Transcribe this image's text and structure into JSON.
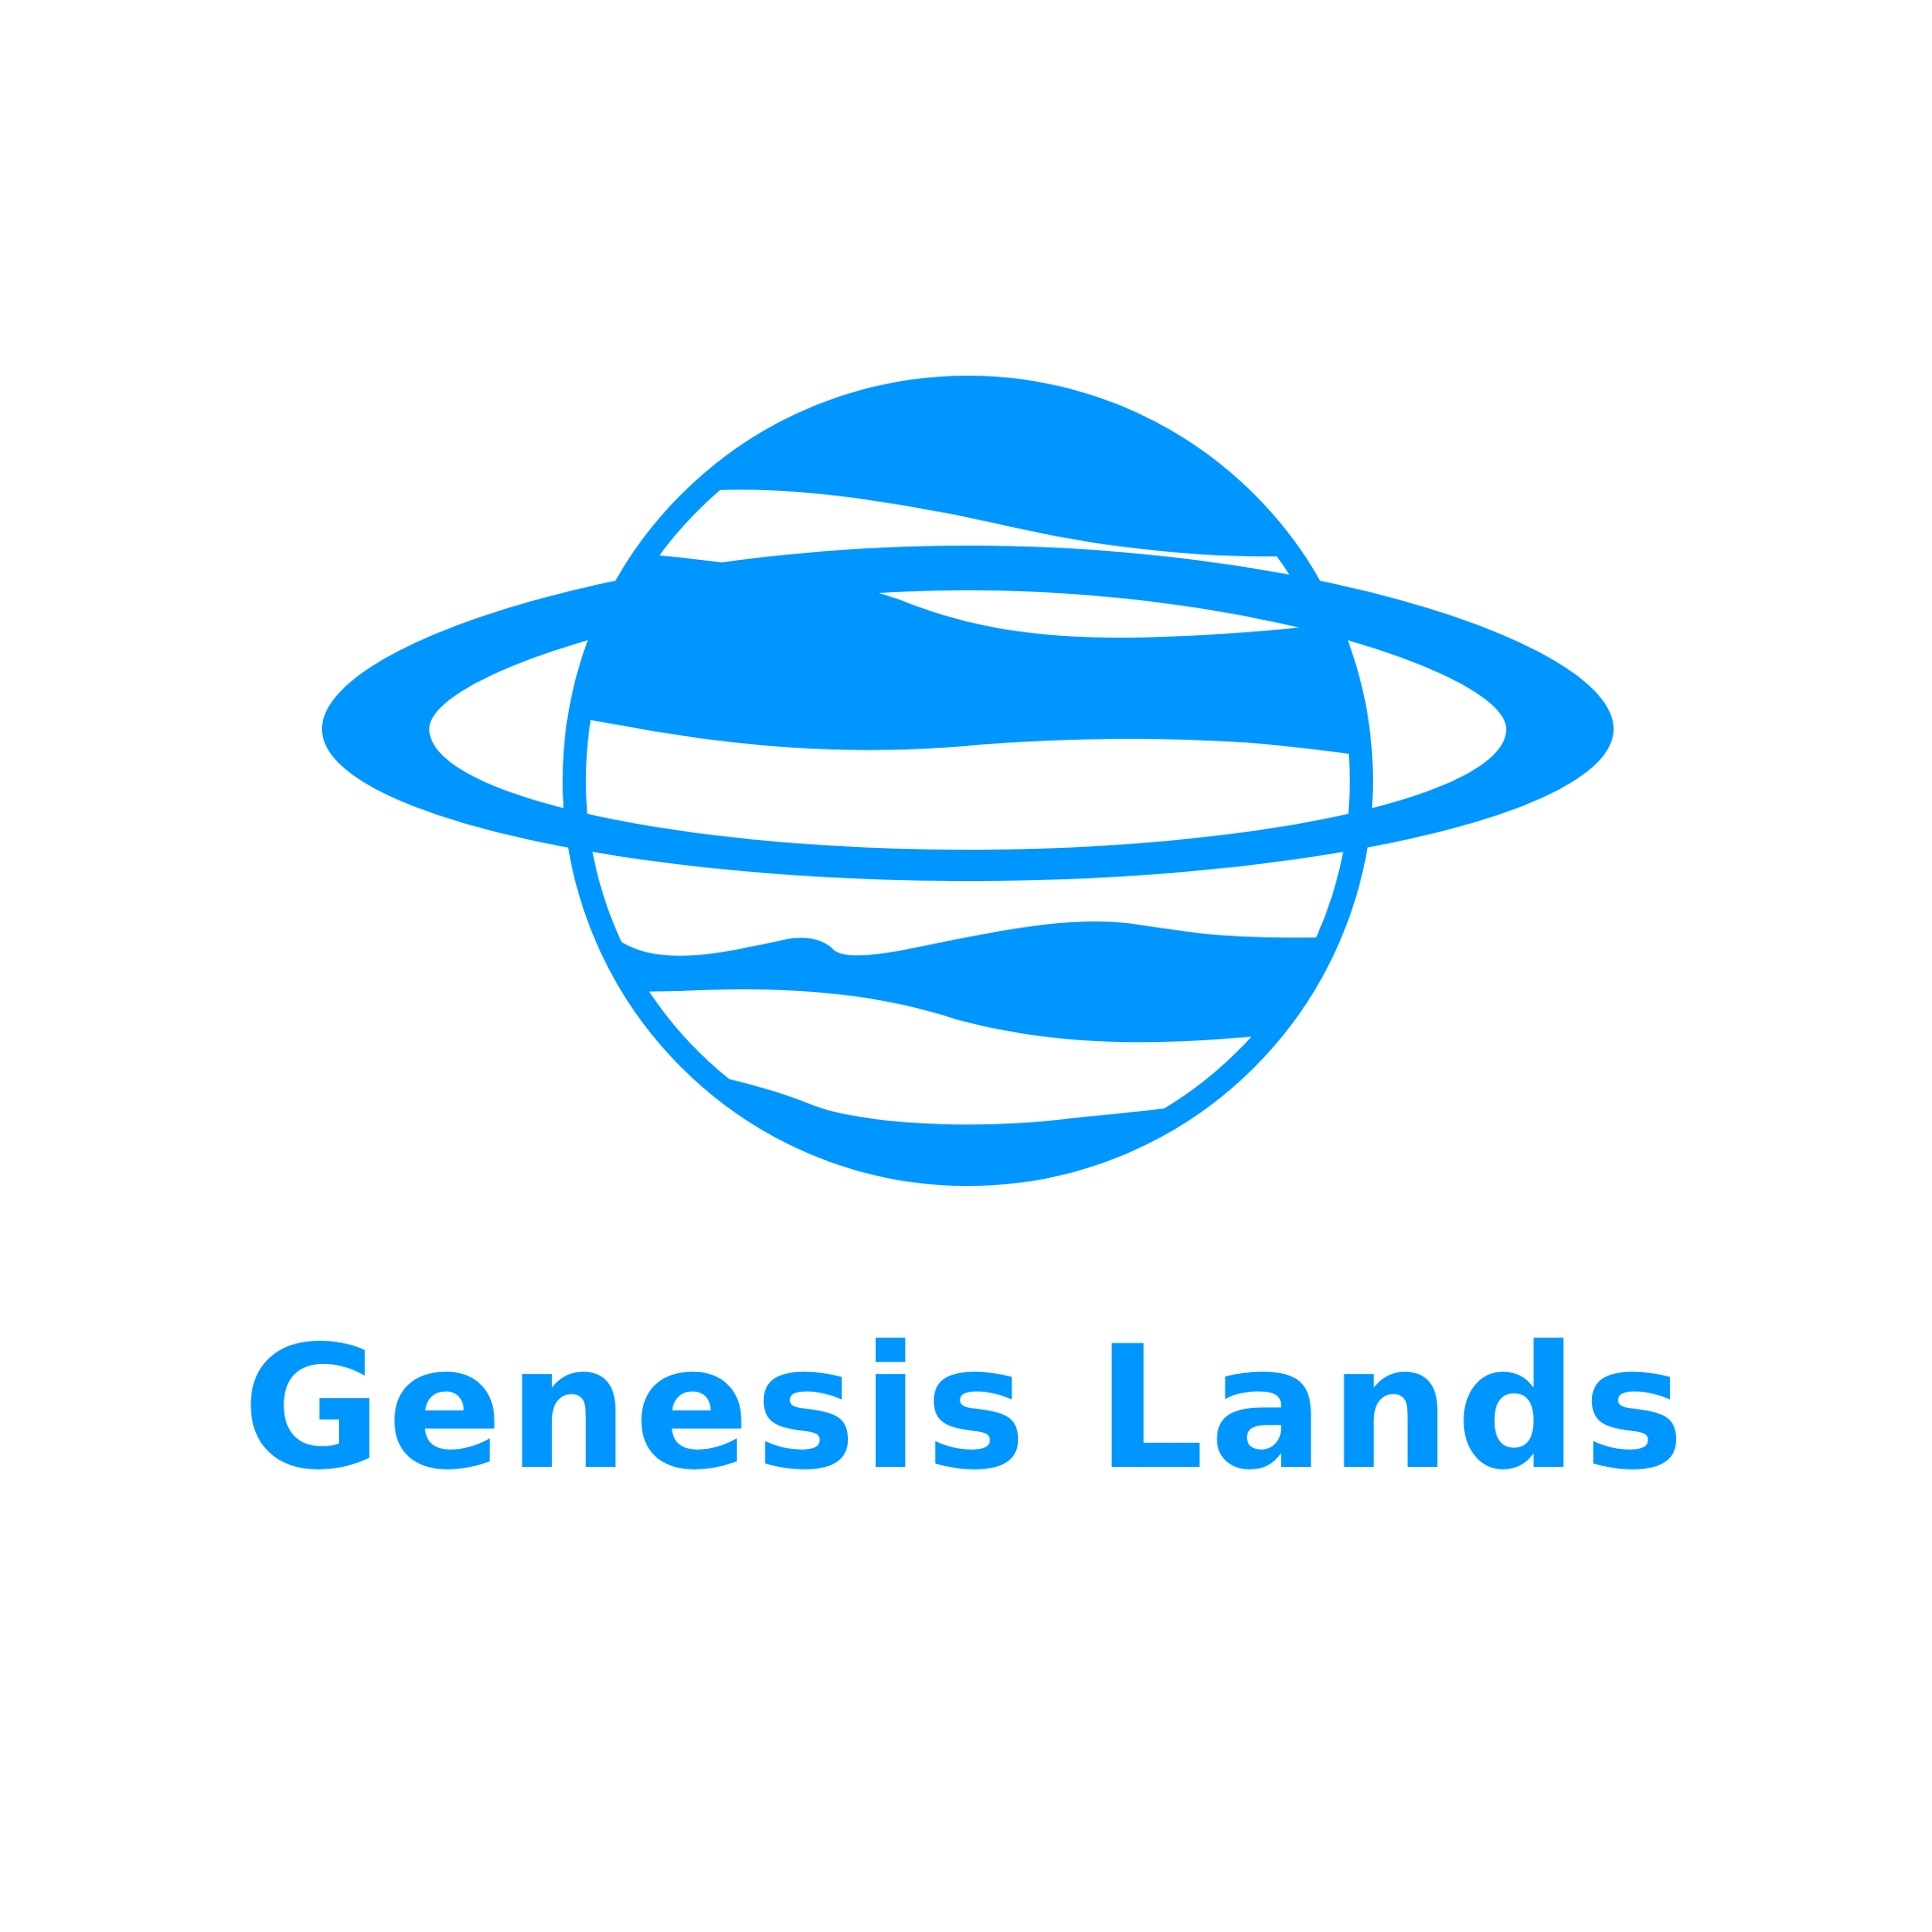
{
  "logo": {
    "name": "Genesis Lands",
    "icon": "ringed-planet-icon",
    "brand_color": "#0096FF",
    "background_color": "#FFFFFF"
  }
}
